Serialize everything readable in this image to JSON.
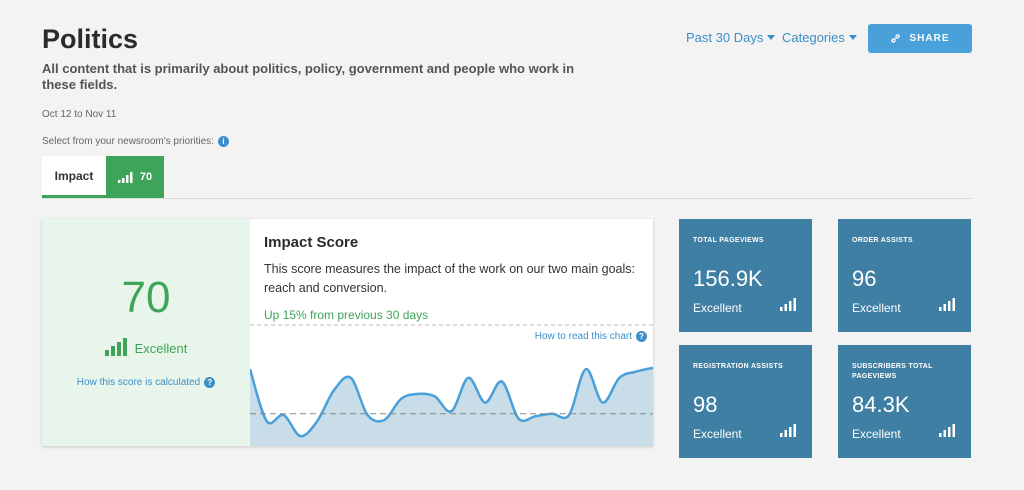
{
  "header": {
    "title": "Politics",
    "description": "All content that is primarily about politics, policy, government and people who work in these fields.",
    "date_range": "Oct 12 to Nov 11",
    "priorities_label": "Select from your newsroom's priorities:",
    "period_dropdown": "Past 30 Days",
    "categories_dropdown": "Categories",
    "share_label": "SHARE"
  },
  "tabs": {
    "impact_label": "Impact",
    "impact_score": "70"
  },
  "score_panel": {
    "score": "70",
    "rating": "Excellent",
    "calc_link": "How this score is calculated"
  },
  "impact": {
    "title": "Impact Score",
    "description": "This score measures the impact of the work on our two main goals: reach and conversion.",
    "trend": "Up 15% from previous 30 days",
    "read_link": "How to read this chart"
  },
  "chart_data": {
    "type": "area",
    "values": [
      62,
      20,
      25,
      8,
      20,
      45,
      55,
      25,
      21,
      38,
      42,
      40,
      28,
      55,
      35,
      52,
      22,
      24,
      26,
      25,
      62,
      35,
      55,
      60,
      63
    ],
    "baseline": 26,
    "ylim": [
      0,
      75
    ]
  },
  "stats": [
    {
      "label": "TOTAL PAGEVIEWS",
      "value": "156.9K",
      "rating": "Excellent"
    },
    {
      "label": "ORDER ASSISTS",
      "value": "96",
      "rating": "Excellent"
    },
    {
      "label": "REGISTRATION ASSISTS",
      "value": "98",
      "rating": "Excellent"
    },
    {
      "label": "SUBSCRIBERS TOTAL PAGEVIEWS",
      "value": "84.3K",
      "rating": "Excellent"
    }
  ],
  "colors": {
    "accent": "#3d8fc9",
    "good": "#3ea45a",
    "stat_card": "#3f7fa3",
    "chart_line": "#4aa0d8",
    "chart_fill": "#c9dde8"
  }
}
